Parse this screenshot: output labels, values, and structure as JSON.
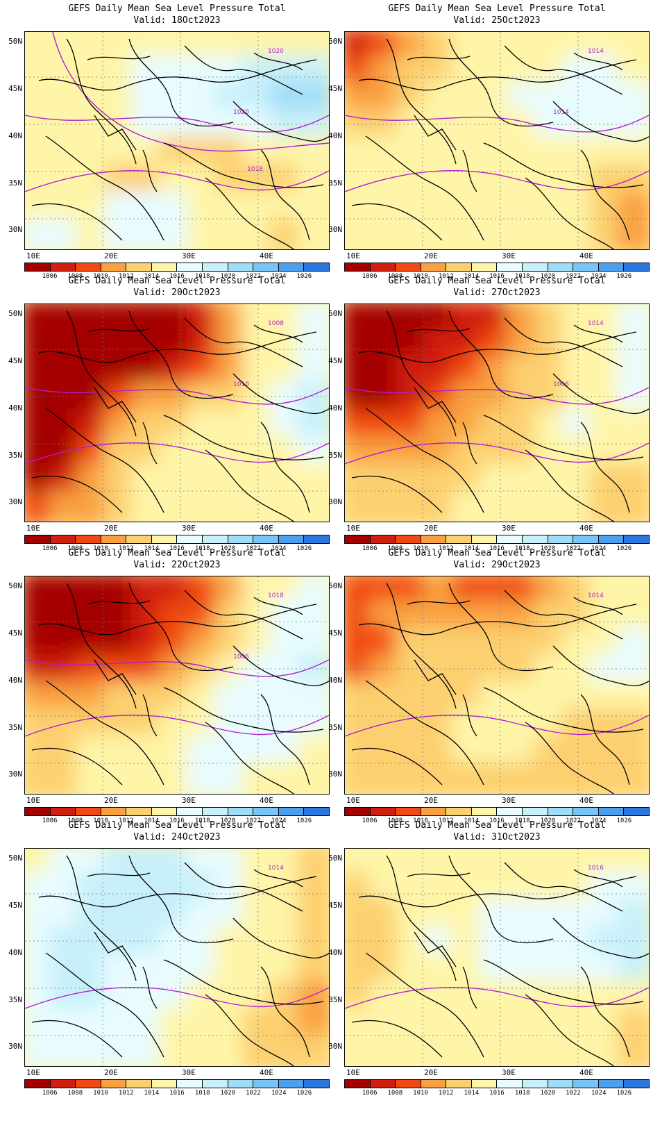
{
  "title": "GEFS Daily Mean Sea Level Pressure Total",
  "colorbar": {
    "colors": [
      "#a50000",
      "#d21e10",
      "#f04a10",
      "#f9a040",
      "#fcd070",
      "#fef5a8",
      "#e8fcff",
      "#c8f0fa",
      "#a0dcf8",
      "#78c4f6",
      "#4aa0ee",
      "#2a78e0"
    ],
    "labels": [
      "1006",
      "1008",
      "1010",
      "1012",
      "1014",
      "1016",
      "1018",
      "1020",
      "1022",
      "1024",
      "1026"
    ]
  },
  "axes": {
    "lat_ticks": [
      "50N",
      "45N",
      "40N",
      "35N",
      "30N"
    ],
    "lon_ticks": [
      "10E",
      "20E",
      "30E",
      "40E"
    ]
  },
  "panels": [
    {
      "valid": "Valid: 18Oct2023",
      "fields": [
        [
          "ff",
          "ff",
          "ff",
          "f",
          "f",
          "f",
          "f",
          "f",
          "f",
          "f",
          "f"
        ],
        [
          "f",
          "f",
          "f",
          "f",
          "g",
          "g",
          "g",
          "g",
          "h",
          "h",
          "h"
        ],
        [
          "ff",
          "f",
          "f",
          "f",
          "g",
          "g",
          "g",
          "h",
          "h",
          "i",
          "i"
        ],
        [
          "ff",
          "f",
          "f",
          "f",
          "g",
          "g",
          "g",
          "g",
          "gg",
          "h",
          "h"
        ],
        [
          "ff",
          "f",
          "f",
          "f",
          "f",
          "e",
          "e",
          "e",
          "f",
          "f",
          "f"
        ],
        [
          "ff",
          "f",
          "f",
          "e",
          "e",
          "ff",
          "ff",
          "e",
          "e",
          "e",
          "ff"
        ],
        [
          "f",
          "f",
          "ff",
          "g",
          "g",
          "g",
          "ff",
          "f",
          "f",
          "f",
          "ff"
        ],
        [
          "g",
          "g",
          "ff",
          "g",
          "g",
          "g",
          "f",
          "f",
          "f",
          "e",
          "f"
        ]
      ],
      "contours": [
        "1020",
        "1020",
        "1018"
      ]
    },
    {
      "valid": "Valid: 25Oct2023",
      "fields": [
        [
          "b",
          "c",
          "d",
          "e",
          "f",
          "f",
          "ff",
          "f",
          "f",
          "f",
          "f"
        ],
        [
          "c",
          "d",
          "e",
          "e",
          "f",
          "f",
          "f",
          "f",
          "g",
          "g",
          "f"
        ],
        [
          "d",
          "d",
          "e",
          "f",
          "f",
          "f",
          "g",
          "g",
          "g",
          "g",
          "g"
        ],
        [
          "e",
          "e",
          "f",
          "f",
          "f",
          "f",
          "f",
          "g",
          "g",
          "g",
          "g"
        ],
        [
          "f",
          "f",
          "f",
          "f",
          "f",
          "f",
          "f",
          "f",
          "f",
          "f",
          "f"
        ],
        [
          "f",
          "f",
          "f",
          "f",
          "f",
          "f",
          "f",
          "ff",
          "f",
          "e",
          "e"
        ],
        [
          "f",
          "f",
          "f",
          "f",
          "f",
          "f",
          "f",
          "f",
          "f",
          "e",
          "d"
        ],
        [
          "f",
          "f",
          "f",
          "f",
          "f",
          "f",
          "f",
          "f",
          "f",
          "e",
          "d"
        ]
      ],
      "contours": [
        "1014",
        "1014"
      ]
    },
    {
      "valid": "Valid: 20Oct2023",
      "fields": [
        [
          "a",
          "a",
          "a",
          "a",
          "a",
          "a",
          "b",
          "d",
          "f",
          "f",
          "g"
        ],
        [
          "a",
          "a",
          "a",
          "a",
          "a",
          "a",
          "b",
          "d",
          "f",
          "f",
          "g"
        ],
        [
          "a",
          "a",
          "a",
          "a",
          "a",
          "b",
          "c",
          "d",
          "f",
          "f",
          "g"
        ],
        [
          "a",
          "a",
          "a",
          "c",
          "d",
          "d",
          "e",
          "e",
          "f",
          "g",
          "h"
        ],
        [
          "a",
          "a",
          "b",
          "d",
          "e",
          "e",
          "f",
          "f",
          "f",
          "g",
          "h"
        ],
        [
          "a",
          "a",
          "c",
          "e",
          "e",
          "f",
          "f",
          "f",
          "f",
          "f",
          "g"
        ],
        [
          "a",
          "b",
          "d",
          "e",
          "f",
          "f",
          "f",
          "f",
          "f",
          "f",
          "f"
        ],
        [
          "c",
          "d",
          "d",
          "e",
          "f",
          "f",
          "f",
          "f",
          "f",
          "f",
          "f"
        ]
      ],
      "contours": [
        "1008",
        "1010"
      ]
    },
    {
      "valid": "Valid: 27Oct2023",
      "fields": [
        [
          "a",
          "a",
          "a",
          "a",
          "b",
          "b",
          "d",
          "e",
          "f",
          "f",
          "g"
        ],
        [
          "a",
          "a",
          "a",
          "b",
          "b",
          "c",
          "d",
          "e",
          "f",
          "f",
          "g"
        ],
        [
          "a",
          "a",
          "b",
          "b",
          "c",
          "d",
          "e",
          "e",
          "f",
          "f",
          "g"
        ],
        [
          "a",
          "a",
          "b",
          "c",
          "d",
          "d",
          "e",
          "e",
          "f",
          "f",
          "g"
        ],
        [
          "c",
          "c",
          "c",
          "d",
          "d",
          "e",
          "e",
          "f",
          "g",
          "f",
          "f"
        ],
        [
          "d",
          "d",
          "d",
          "d",
          "e",
          "e",
          "e",
          "f",
          "f",
          "f",
          "f"
        ],
        [
          "e",
          "e",
          "e",
          "e",
          "e",
          "f",
          "f",
          "f",
          "f",
          "e",
          "e"
        ],
        [
          "e",
          "e",
          "e",
          "e",
          "f",
          "f",
          "f",
          "f",
          "f",
          "e",
          "e"
        ]
      ],
      "contours": [
        "1014",
        "1006"
      ]
    },
    {
      "valid": "Valid: 22Oct2023",
      "fields": [
        [
          "a",
          "a",
          "a",
          "a",
          "b",
          "b",
          "c",
          "d",
          "f",
          "f",
          "g"
        ],
        [
          "a",
          "a",
          "a",
          "a",
          "b",
          "c",
          "c",
          "e",
          "f",
          "g",
          "g"
        ],
        [
          "a",
          "a",
          "a",
          "a",
          "b",
          "c",
          "d",
          "e",
          "f",
          "g",
          "g"
        ],
        [
          "b",
          "b",
          "c",
          "c",
          "c",
          "d",
          "e",
          "f",
          "g",
          "g",
          "h"
        ],
        [
          "d",
          "d",
          "d",
          "e",
          "e",
          "e",
          "f",
          "g",
          "g",
          "g",
          "g"
        ],
        [
          "e",
          "e",
          "e",
          "e",
          "e",
          "f",
          "f",
          "g",
          "g",
          "g",
          "g"
        ],
        [
          "e",
          "e",
          "f",
          "f",
          "f",
          "f",
          "g",
          "g",
          "g",
          "g",
          "f"
        ],
        [
          "e",
          "e",
          "f",
          "f",
          "f",
          "f",
          "g",
          "g",
          "f",
          "f",
          "f"
        ]
      ],
      "contours": [
        "1018",
        "1006"
      ]
    },
    {
      "valid": "Valid: 29Oct2023",
      "fields": [
        [
          "c",
          "c",
          "c",
          "d",
          "c",
          "c",
          "c",
          "d",
          "e",
          "f",
          "f"
        ],
        [
          "c",
          "d",
          "d",
          "d",
          "d",
          "d",
          "d",
          "e",
          "e",
          "f",
          "f"
        ],
        [
          "c",
          "c",
          "e",
          "e",
          "e",
          "e",
          "e",
          "e",
          "f",
          "f",
          "g"
        ],
        [
          "c",
          "d",
          "e",
          "e",
          "e",
          "e",
          "e",
          "f",
          "f",
          "g",
          "g"
        ],
        [
          "e",
          "e",
          "e",
          "e",
          "e",
          "f",
          "f",
          "f",
          "f",
          "f",
          "f"
        ],
        [
          "e",
          "e",
          "e",
          "e",
          "f",
          "f",
          "f",
          "f",
          "e",
          "e",
          "e"
        ],
        [
          "e",
          "e",
          "e",
          "e",
          "f",
          "f",
          "f",
          "e",
          "e",
          "e",
          "e"
        ],
        [
          "e",
          "e",
          "e",
          "e",
          "e",
          "e",
          "e",
          "e",
          "e",
          "e",
          "e"
        ]
      ],
      "contours": [
        "1014"
      ]
    },
    {
      "valid": "Valid: 24Oct2023",
      "fields": [
        [
          "f",
          "g",
          "g",
          "h",
          "h",
          "h",
          "g",
          "g",
          "f",
          "f",
          "e"
        ],
        [
          "g",
          "g",
          "h",
          "h",
          "h",
          "h",
          "h",
          "g",
          "f",
          "f",
          "e"
        ],
        [
          "g",
          "g",
          "h",
          "h",
          "h",
          "h",
          "g",
          "g",
          "f",
          "f",
          "e"
        ],
        [
          "g",
          "h",
          "h",
          "h",
          "h",
          "g",
          "g",
          "f",
          "f",
          "f",
          "e"
        ],
        [
          "g",
          "h",
          "h",
          "g",
          "g",
          "g",
          "g",
          "f",
          "f",
          "f",
          "e"
        ],
        [
          "g",
          "h",
          "h",
          "g",
          "g",
          "g",
          "f",
          "f",
          "f",
          "e",
          "d"
        ],
        [
          "g",
          "g",
          "g",
          "g",
          "g",
          "f",
          "f",
          "f",
          "e",
          "e",
          "d"
        ],
        [
          "g",
          "g",
          "g",
          "g",
          "g",
          "f",
          "f",
          "f",
          "e",
          "e",
          "e"
        ]
      ],
      "contours": [
        "1014"
      ]
    },
    {
      "valid": "Valid: 31Oct2023",
      "fields": [
        [
          "f",
          "f",
          "f",
          "f",
          "f",
          "f",
          "f",
          "f",
          "f",
          "f",
          "f"
        ],
        [
          "e",
          "f",
          "f",
          "f",
          "f",
          "f",
          "f",
          "f",
          "f",
          "g",
          "g"
        ],
        [
          "e",
          "e",
          "f",
          "f",
          "f",
          "g",
          "g",
          "g",
          "g",
          "g",
          "h"
        ],
        [
          "e",
          "e",
          "f",
          "g",
          "f",
          "g",
          "g",
          "g",
          "g",
          "h",
          "h"
        ],
        [
          "e",
          "e",
          "f",
          "f",
          "f",
          "g",
          "g",
          "g",
          "g",
          "g",
          "h"
        ],
        [
          "e",
          "f",
          "f",
          "f",
          "f",
          "f",
          "f",
          "f",
          "f",
          "f",
          "f"
        ],
        [
          "f",
          "f",
          "f",
          "f",
          "f",
          "f",
          "f",
          "f",
          "f",
          "f",
          "e"
        ],
        [
          "f",
          "f",
          "f",
          "f",
          "f",
          "f",
          "f",
          "f",
          "f",
          "f",
          "e"
        ]
      ],
      "contours": [
        "1016"
      ]
    }
  ]
}
